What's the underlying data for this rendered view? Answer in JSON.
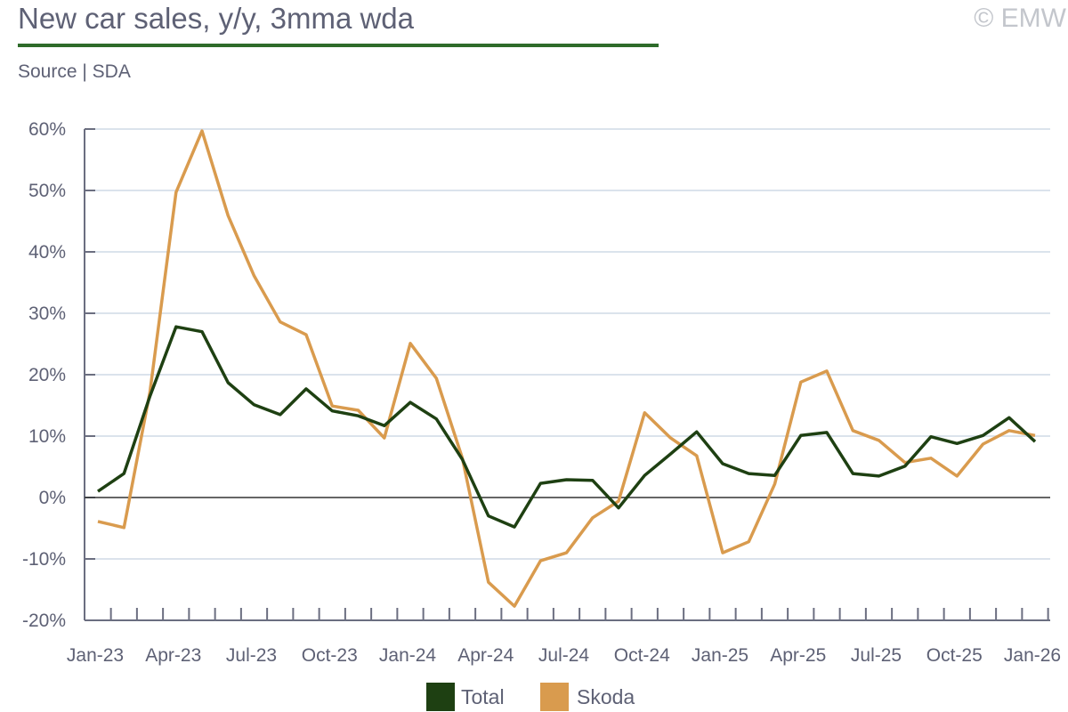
{
  "header": {
    "title": "New car sales, y/y, 3mma wda",
    "source": "Source | SDA",
    "copyright": "© EMW"
  },
  "colors": {
    "total": "#1e4012",
    "skoda": "#d99b4e",
    "grid": "#dbe3ec",
    "title_rule": "#2e6b2a"
  },
  "chart_data": {
    "type": "line",
    "title": "New car sales, y/y, 3mma wda",
    "xlabel": "",
    "ylabel": "",
    "ylim": [
      -20,
      60
    ],
    "yticks": [
      "-20%",
      "-10%",
      "0%",
      "10%",
      "20%",
      "30%",
      "40%",
      "50%",
      "60%"
    ],
    "ytick_values": [
      -20,
      -10,
      0,
      10,
      20,
      30,
      40,
      50,
      60
    ],
    "grid": true,
    "legend_position": "bottom",
    "x": [
      "Jan-23",
      "Feb-23",
      "Mar-23",
      "Apr-23",
      "May-23",
      "Jun-23",
      "Jul-23",
      "Aug-23",
      "Sep-23",
      "Oct-23",
      "Nov-23",
      "Dec-23",
      "Jan-24",
      "Feb-24",
      "Mar-24",
      "Apr-24",
      "May-24",
      "Jun-24",
      "Jul-24",
      "Aug-24",
      "Sep-24",
      "Oct-24",
      "Nov-24",
      "Dec-24",
      "Jan-25",
      "Feb-25",
      "Mar-25",
      "Apr-25",
      "May-25",
      "Jun-25",
      "Jul-25",
      "Aug-25",
      "Sep-25",
      "Oct-25",
      "Nov-25",
      "Dec-25",
      "Jan-26"
    ],
    "xtick_labels": [
      "Jan-23",
      "Apr-23",
      "Jul-23",
      "Oct-23",
      "Jan-24",
      "Apr-24",
      "Jul-24",
      "Oct-24",
      "Jan-25",
      "Apr-25",
      "Jul-25",
      "Oct-25",
      "Jan-26"
    ],
    "series": [
      {
        "name": "Total",
        "values": [
          1.0,
          3.9,
          16.5,
          27.8,
          27.0,
          18.7,
          15.1,
          13.5,
          17.7,
          14.1,
          13.3,
          11.7,
          15.5,
          12.8,
          6.2,
          -3.0,
          -4.8,
          2.3,
          2.9,
          2.8,
          -1.7,
          3.6,
          7.1,
          10.7,
          5.5,
          3.9,
          3.6,
          10.1,
          10.6,
          3.9,
          3.5,
          5.1,
          9.9,
          8.8,
          10.1,
          13.0,
          9.1
        ]
      },
      {
        "name": "Skoda",
        "values": [
          -3.9,
          -4.9,
          17.2,
          49.7,
          59.7,
          45.9,
          36.1,
          28.6,
          26.5,
          14.9,
          14.2,
          9.7,
          25.1,
          19.4,
          6.4,
          -13.8,
          -17.7,
          -10.3,
          -9.0,
          -3.3,
          -0.6,
          13.8,
          9.7,
          6.8,
          -9.0,
          -7.2,
          2.2,
          18.8,
          20.6,
          10.9,
          9.3,
          5.7,
          6.4,
          3.5,
          8.7,
          10.9,
          10.1
        ]
      }
    ]
  }
}
